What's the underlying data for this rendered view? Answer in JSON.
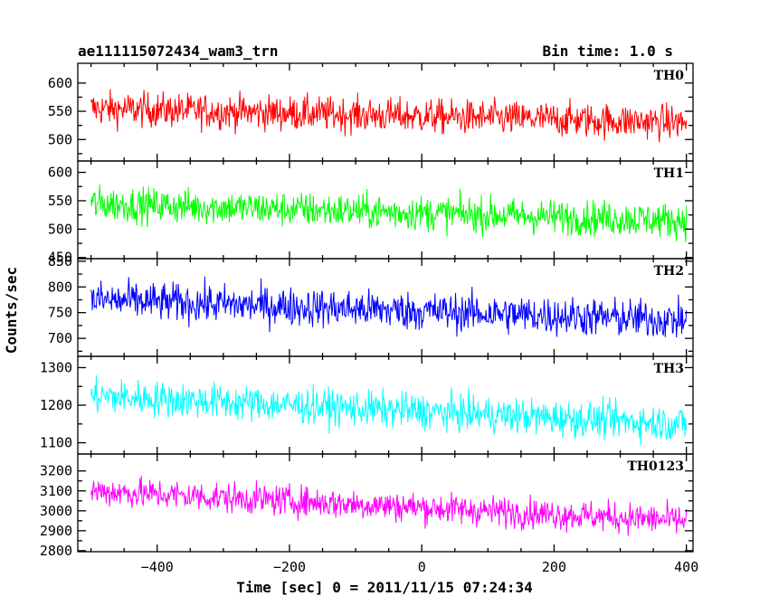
{
  "title": "ae111115072434_wam3_trn",
  "bin_time": "Bin time: 1.0 s",
  "ylabel": "Counts/sec",
  "xlabel": "Time [sec] 0 = 2011/11/15 07:24:34",
  "chart_data": {
    "type": "line",
    "xlim": [
      -520,
      410
    ],
    "xticks": [
      -400,
      -200,
      0,
      200,
      400
    ],
    "xtick_labels": [
      "−400",
      "−200",
      "0",
      "200",
      "400"
    ],
    "x_start": -500,
    "x_end": 400,
    "bin_time_s": 1.0,
    "panels": [
      {
        "name": "TH0",
        "color": "#ff0000",
        "ylim": [
          462,
          635
        ],
        "yticks": [
          500,
          550,
          600
        ],
        "ytick_labels": [
          "500",
          "550",
          "600"
        ],
        "trend_start": 555,
        "trend_end": 530,
        "noise": 22,
        "max_amp": 75
      },
      {
        "name": "TH1",
        "color": "#00ff00",
        "ylim": [
          448,
          620
        ],
        "yticks": [
          450,
          500,
          550,
          600
        ],
        "ytick_labels": [
          "450",
          "500",
          "550",
          "600"
        ],
        "trend_start": 545,
        "trend_end": 515,
        "noise": 22,
        "max_amp": 75
      },
      {
        "name": "TH2",
        "color": "#0000ff",
        "ylim": [
          665,
          855
        ],
        "yticks": [
          700,
          750,
          800,
          850
        ],
        "ytick_labels": [
          "700",
          "750",
          "800",
          "850"
        ],
        "trend_start": 775,
        "trend_end": 735,
        "noise": 27,
        "max_amp": 85
      },
      {
        "name": "TH3",
        "color": "#00ffff",
        "ylim": [
          1070,
          1330
        ],
        "yticks": [
          1100,
          1200,
          1300
        ],
        "ytick_labels": [
          "1100",
          "1200",
          "1300"
        ],
        "trend_start": 1225,
        "trend_end": 1150,
        "noise": 34,
        "max_amp": 110
      },
      {
        "name": "TH0123",
        "color": "#ff00ff",
        "ylim": [
          2795,
          3285
        ],
        "yticks": [
          2800,
          2900,
          3000,
          3100,
          3200
        ],
        "ytick_labels": [
          "2800",
          "2900",
          "3000",
          "3100",
          "3200"
        ],
        "trend_start": 3100,
        "trend_end": 2950,
        "noise": 55,
        "max_amp": 180
      }
    ]
  }
}
